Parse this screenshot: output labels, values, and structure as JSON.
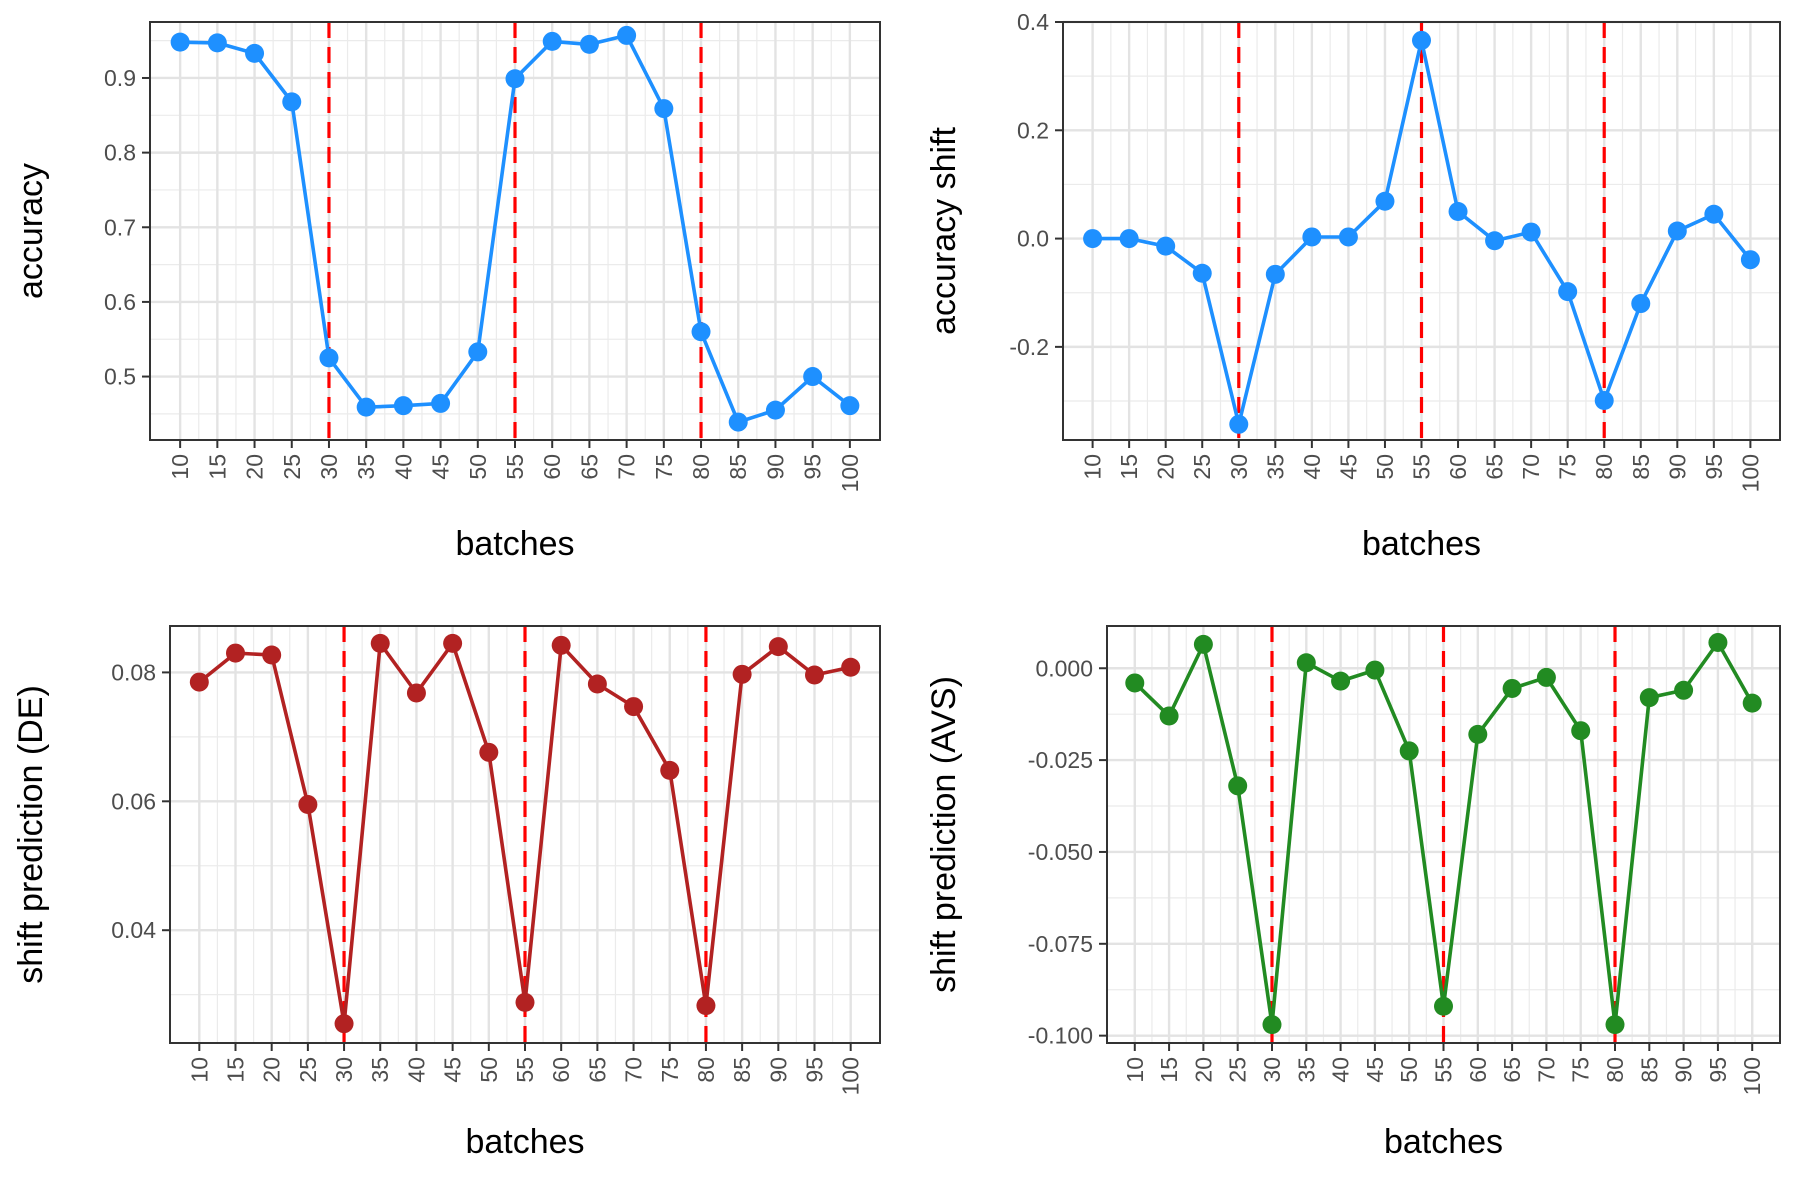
{
  "chart_data": [
    {
      "type": "line",
      "xlabel": "batches",
      "ylabel": "accuracy",
      "x": [
        10,
        15,
        20,
        25,
        30,
        35,
        40,
        45,
        50,
        55,
        60,
        65,
        70,
        75,
        80,
        85,
        90,
        95,
        100
      ],
      "series": [
        {
          "values": [
            0.948,
            0.947,
            0.933,
            0.868,
            0.525,
            0.459,
            0.461,
            0.464,
            0.533,
            0.899,
            0.949,
            0.945,
            0.957,
            0.859,
            0.56,
            0.439,
            0.455,
            0.5,
            0.461
          ],
          "color": "#1E90FF"
        }
      ],
      "xticks": [
        "10",
        "15",
        "20",
        "25",
        "30",
        "35",
        "40",
        "45",
        "50",
        "55",
        "60",
        "65",
        "70",
        "75",
        "80",
        "85",
        "90",
        "95",
        "100"
      ],
      "yticks": [
        "0.5",
        "0.6",
        "0.7",
        "0.8",
        "0.9"
      ],
      "ylim": [
        0.415,
        0.975
      ],
      "change_points": [
        30,
        55,
        80
      ],
      "change_point_color": "#FF0000",
      "grid": true
    },
    {
      "type": "line",
      "xlabel": "batches",
      "ylabel": "accuracy shift",
      "x": [
        10,
        15,
        20,
        25,
        30,
        35,
        40,
        45,
        50,
        55,
        60,
        65,
        70,
        75,
        80,
        85,
        90,
        95,
        100
      ],
      "series": [
        {
          "values": [
            0.0,
            0.0,
            -0.014,
            -0.064,
            -0.343,
            -0.066,
            0.003,
            0.003,
            0.069,
            0.366,
            0.05,
            -0.004,
            0.012,
            -0.098,
            -0.299,
            -0.12,
            0.014,
            0.045,
            -0.039
          ],
          "color": "#1E90FF"
        }
      ],
      "xticks": [
        "10",
        "15",
        "20",
        "25",
        "30",
        "35",
        "40",
        "45",
        "50",
        "55",
        "60",
        "65",
        "70",
        "75",
        "80",
        "85",
        "90",
        "95",
        "100"
      ],
      "yticks": [
        "-0.2",
        "0.0",
        "0.2",
        "0.4"
      ],
      "ylim": [
        -0.372,
        0.4
      ],
      "change_points": [
        30,
        55,
        80
      ],
      "change_point_color": "#FF0000",
      "grid": true
    },
    {
      "type": "line",
      "xlabel": "batches",
      "ylabel": "shift prediction (DE)",
      "x": [
        10,
        15,
        20,
        25,
        30,
        35,
        40,
        45,
        50,
        55,
        60,
        65,
        70,
        75,
        80,
        85,
        90,
        95,
        100
      ],
      "series": [
        {
          "values": [
            0.0785,
            0.083,
            0.0827,
            0.0595,
            0.0255,
            0.0845,
            0.0768,
            0.0845,
            0.0676,
            0.0288,
            0.0842,
            0.0782,
            0.0747,
            0.0648,
            0.0283,
            0.0797,
            0.084,
            0.0796,
            0.0808
          ],
          "color": "#B22222"
        }
      ],
      "xticks": [
        "10",
        "15",
        "20",
        "25",
        "30",
        "35",
        "40",
        "45",
        "50",
        "55",
        "60",
        "65",
        "70",
        "75",
        "80",
        "85",
        "90",
        "95",
        "100"
      ],
      "yticks": [
        "0.04",
        "0.06",
        "0.08"
      ],
      "ylim": [
        0.0225,
        0.0872
      ],
      "change_points": [
        30,
        55,
        80
      ],
      "change_point_color": "#FF0000",
      "grid": true
    },
    {
      "type": "line",
      "xlabel": "batches",
      "ylabel": "shift prediction (AVS)",
      "x": [
        10,
        15,
        20,
        25,
        30,
        35,
        40,
        45,
        50,
        55,
        60,
        65,
        70,
        75,
        80,
        85,
        90,
        95,
        100
      ],
      "series": [
        {
          "values": [
            -0.004,
            -0.013,
            0.0065,
            -0.032,
            -0.097,
            0.0015,
            -0.0035,
            -0.0005,
            -0.0225,
            -0.092,
            -0.018,
            -0.0055,
            -0.0025,
            -0.017,
            -0.097,
            -0.008,
            -0.006,
            0.007,
            -0.0095
          ],
          "color": "#228B22"
        }
      ],
      "xticks": [
        "10",
        "15",
        "20",
        "25",
        "30",
        "35",
        "40",
        "45",
        "50",
        "55",
        "60",
        "65",
        "70",
        "75",
        "80",
        "85",
        "90",
        "95",
        "100"
      ],
      "yticks": [
        "-0.100",
        "-0.075",
        "-0.050",
        "-0.025",
        "0.000"
      ],
      "ylim": [
        -0.102,
        0.0115
      ],
      "change_points": [
        30,
        55,
        80
      ],
      "change_point_color": "#FF0000",
      "grid": true
    }
  ]
}
